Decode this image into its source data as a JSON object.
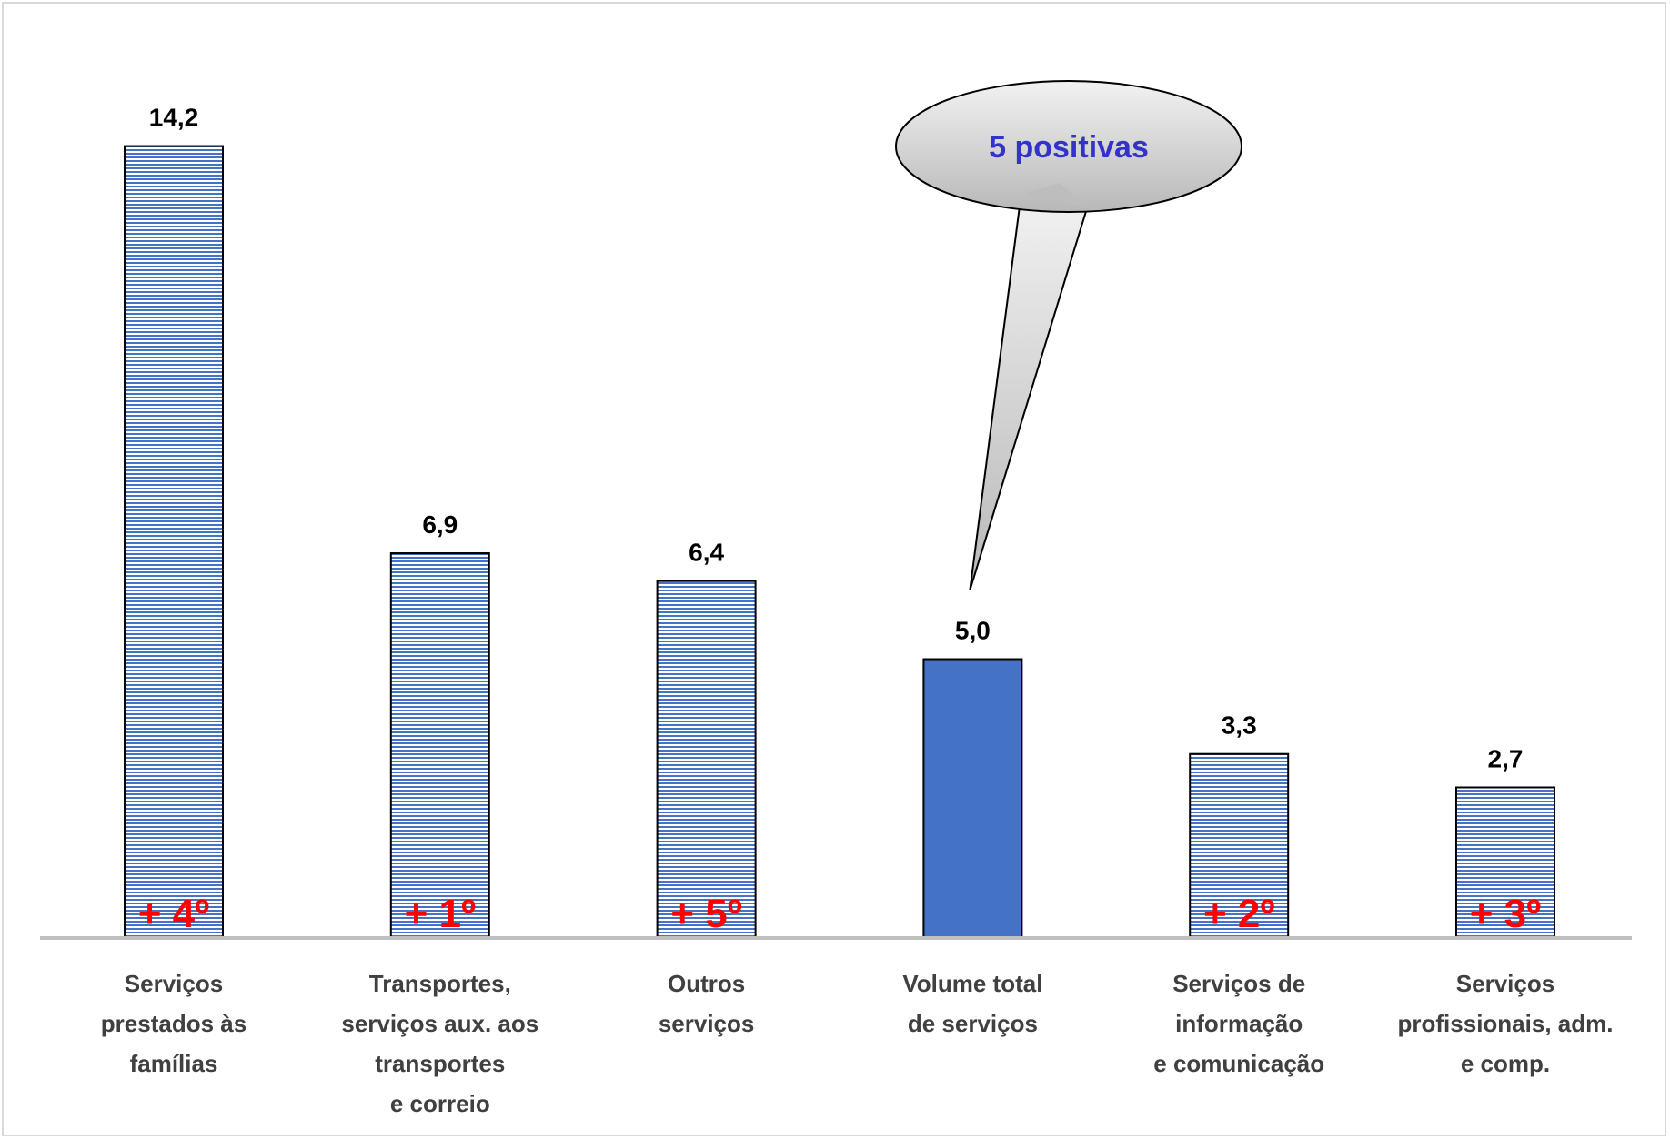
{
  "chart_data": {
    "type": "bar",
    "categories": [
      [
        "Serviços",
        "prestados às",
        "famílias"
      ],
      [
        "Transportes,",
        "serviços aux. aos",
        "transportes",
        "e correio"
      ],
      [
        "Outros",
        "serviços"
      ],
      [
        "Volume total",
        "de serviços"
      ],
      [
        "Serviços de",
        "informação",
        "e comunicação"
      ],
      [
        "Serviços",
        "profissionais, adm.",
        "e comp."
      ]
    ],
    "values": [
      14.2,
      6.9,
      6.4,
      5.0,
      3.3,
      2.7
    ],
    "value_labels": [
      "14,2",
      "6,9",
      "6,4",
      "5,0",
      "3,3",
      "2,7"
    ],
    "rank_labels": [
      "+ 4º",
      "+ 1º",
      "+ 5º",
      "",
      "+ 2º",
      "+ 3º"
    ],
    "highlight_index": 3,
    "ylim": [
      0,
      15
    ],
    "grid": false,
    "legend": "none",
    "callout": {
      "text": "5 positivas",
      "target_index": 3
    },
    "colors": {
      "bar_stripe": "#4472c4",
      "bar_background": "#ffffff",
      "highlight_bar": "#4472c4",
      "bar_outline": "#000000",
      "axis_line": "#bfbfbf",
      "rank_text": "#ff0000",
      "callout_text": "#3333cc",
      "callout_fill": "#d0d0d0"
    }
  }
}
